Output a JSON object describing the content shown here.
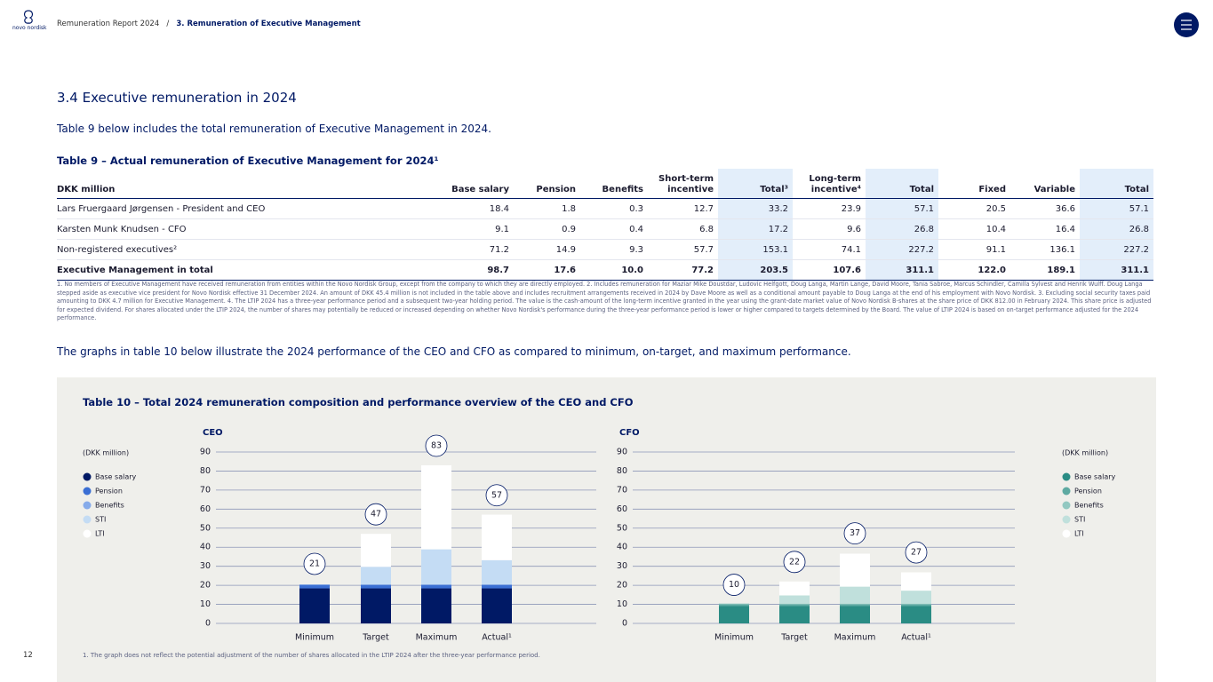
{
  "header": {
    "logo": "novo nordisk",
    "breadcrumb": "Remuneration Report 2024",
    "separator": "/",
    "section": "3. Remuneration of Executive Management"
  },
  "page_number": "12",
  "heading": "3.4 Executive remuneration in 2024",
  "intro": "Table 9 below includes the total remuneration of Executive Management in 2024.",
  "table9": {
    "title": "Table 9 – Actual remuneration of Executive Management for 2024¹",
    "columns": [
      "DKK million",
      "Base salary",
      "Pension",
      "Benefits",
      "Short-term incentive",
      "Total³",
      "Long-term incentive⁴",
      "Total",
      "Fixed",
      "Variable",
      "Total"
    ],
    "rows": [
      [
        "Lars Fruergaard Jørgensen - President and CEO",
        "18.4",
        "1.8",
        "0.3",
        "12.7",
        "33.2",
        "23.9",
        "57.1",
        "20.5",
        "36.6",
        "57.1"
      ],
      [
        "Karsten Munk Knudsen - CFO",
        "9.1",
        "0.9",
        "0.4",
        "6.8",
        "17.2",
        "9.6",
        "26.8",
        "10.4",
        "16.4",
        "26.8"
      ],
      [
        "Non-registered executives²",
        "71.2",
        "14.9",
        "9.3",
        "57.7",
        "153.1",
        "74.1",
        "227.2",
        "91.1",
        "136.1",
        "227.2"
      ],
      [
        "Executive Management in total",
        "98.7",
        "17.6",
        "10.0",
        "77.2",
        "203.5",
        "107.6",
        "311.1",
        "122.0",
        "189.1",
        "311.1"
      ]
    ],
    "footnotes": "1. No members of Executive Management have received remuneration from entities within the Novo Nordisk Group, except from the company to which they are directly employed. 2. Includes remuneration for Maziar Mike Doustdar, Ludovic Helfgott, Doug Langa, Martin Lange, David Moore, Tania Sabroe, Marcus Schindler, Camilla Sylvest and Henrik Wulff. Doug Langa stepped aside as executive vice president for Novo Nordisk effective 31 December 2024. An amount of DKK 45.4 million is not included in the table above and includes recruitment arrangements received in 2024 by Dave Moore as well as a conditional amount payable to Doug Langa at the end of his employment with Novo Nordisk. 3. Excluding social security taxes paid amounting to DKK 4.7 million for Executive Management. 4. The LTIP 2024 has a three-year performance period and a subsequent two-year holding period. The value is the cash-amount of the long-term incentive granted in the year using the grant-date market value of Novo Nordisk B-shares at the share price of DKK 812.00 in February 2024. This share price is adjusted for expected dividend. For shares allocated under the LTIP 2024, the number of shares may potentially be reduced or increased depending on whether Novo Nordisk's performance during the three-year performance period is lower or higher compared to targets determined by the Board. The value of LTIP 2024 is based on on-target performance adjusted for the 2024 performance."
  },
  "graphs_intro": "The graphs in table 10 below illustrate the 2024 performance of the CEO and CFO as compared to minimum, on-target, and maximum performance.",
  "table10": {
    "title": "Table 10 – Total 2024 remuneration composition and performance overview of the CEO and CFO",
    "unit_label": "(DKK million)",
    "note": "1. The graph does not reflect the potential adjustment of the number of shares allocated in the LTIP 2024 after the three-year performance period.",
    "charts": [
      {
        "type": "bar",
        "stacked": true,
        "title": "CEO",
        "legend": "left",
        "categories": [
          "Minimum",
          "Target",
          "Maximum",
          "Actual¹"
        ],
        "series": [
          {
            "name": "Base salary",
            "color": "#001965",
            "values": [
              18.4,
              18.4,
              18.4,
              18.4
            ]
          },
          {
            "name": "Pension",
            "color": "#3b6fd4",
            "values": [
              1.8,
              1.8,
              1.8,
              1.8
            ]
          },
          {
            "name": "Benefits",
            "color": "#86abea",
            "values": [
              0.3,
              0.3,
              0.3,
              0.3
            ]
          },
          {
            "name": "STI",
            "color": "#c4dcf4",
            "values": [
              0,
              9.2,
              18.4,
              12.7
            ]
          },
          {
            "name": "LTI",
            "color": "#ffffff",
            "values": [
              0,
              17.3,
              44.1,
              23.9
            ]
          }
        ],
        "totals": [
          21,
          47,
          83,
          57
        ],
        "ylim": [
          0,
          90
        ],
        "yticks": [
          0,
          10,
          20,
          30,
          40,
          50,
          60,
          70,
          80,
          90
        ]
      },
      {
        "type": "bar",
        "stacked": true,
        "title": "CFO",
        "legend": "right",
        "categories": [
          "Minimum",
          "Target",
          "Maximum",
          "Actual¹"
        ],
        "series": [
          {
            "name": "Base salary",
            "color": "#2a8c84",
            "values": [
              9.1,
              9.1,
              9.1,
              9.1
            ]
          },
          {
            "name": "Pension",
            "color": "#5eaaa2",
            "values": [
              0.9,
              0.9,
              0.9,
              0.9
            ]
          },
          {
            "name": "Benefits",
            "color": "#92c8c1",
            "values": [
              0.4,
              0.4,
              0.4,
              0.4
            ]
          },
          {
            "name": "STI",
            "color": "#c0e0dc",
            "values": [
              0,
              4.3,
              8.9,
              6.8
            ]
          },
          {
            "name": "LTI",
            "color": "#ffffff",
            "values": [
              0,
              7.3,
              17.3,
              9.6
            ]
          }
        ],
        "totals": [
          10,
          22,
          37,
          27
        ],
        "ylim": [
          0,
          90
        ],
        "yticks": [
          0,
          10,
          20,
          30,
          40,
          50,
          60,
          70,
          80,
          90
        ]
      }
    ]
  }
}
